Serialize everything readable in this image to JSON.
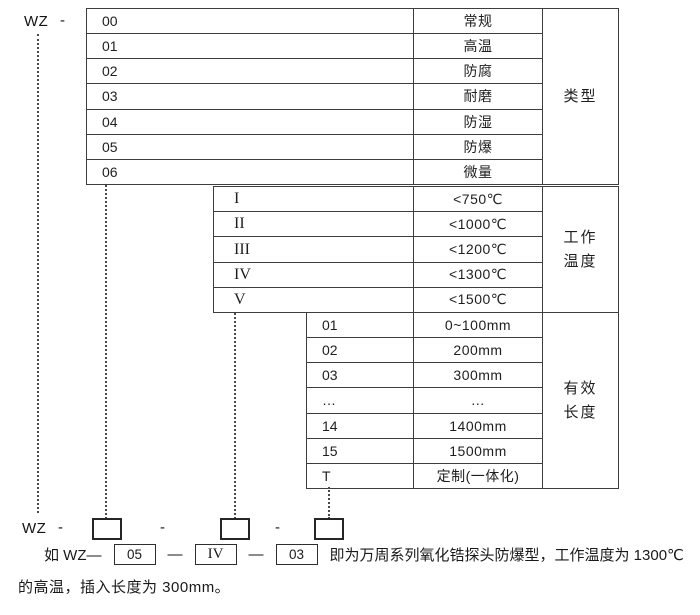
{
  "header": {
    "prefix": "WZ",
    "separator": "-"
  },
  "sections": [
    {
      "name": "type",
      "label_lines": [
        "类型"
      ],
      "rows": [
        {
          "code": "00",
          "desc": "常规"
        },
        {
          "code": "01",
          "desc": "高温"
        },
        {
          "code": "02",
          "desc": "防腐"
        },
        {
          "code": "03",
          "desc": "耐磨"
        },
        {
          "code": "04",
          "desc": "防湿"
        },
        {
          "code": "05",
          "desc": "防爆"
        },
        {
          "code": "06",
          "desc": "微量"
        }
      ]
    },
    {
      "name": "working-temperature",
      "label_lines": [
        "工作",
        "温度"
      ],
      "rows": [
        {
          "code": "I",
          "desc": "<750℃"
        },
        {
          "code": "II",
          "desc": "<1000℃"
        },
        {
          "code": "III",
          "desc": "<1200℃"
        },
        {
          "code": "IV",
          "desc": "<1300℃"
        },
        {
          "code": "V",
          "desc": "<1500℃"
        }
      ]
    },
    {
      "name": "effective-length",
      "label_lines": [
        "有效",
        "长度"
      ],
      "rows": [
        {
          "code": "01",
          "desc": "0~100mm"
        },
        {
          "code": "02",
          "desc": "200mm"
        },
        {
          "code": "03",
          "desc": "300mm"
        },
        {
          "code": "…",
          "desc": "…"
        },
        {
          "code": "14",
          "desc": "1400mm"
        },
        {
          "code": "15",
          "desc": "1500mm"
        },
        {
          "code": "T",
          "desc": "定制(一体化)"
        }
      ]
    }
  ],
  "model_row": {
    "prefix": "WZ",
    "dashes": [
      "-",
      "-",
      "-"
    ]
  },
  "example": {
    "intro": "如 WZ—",
    "codes": [
      "05",
      "IV",
      "03"
    ],
    "dash": "—",
    "conclusion": "即为万周系列氧化锆探头防爆型，工作温度为 1300℃",
    "line2": "的高温，插入长度为 300mm。"
  }
}
